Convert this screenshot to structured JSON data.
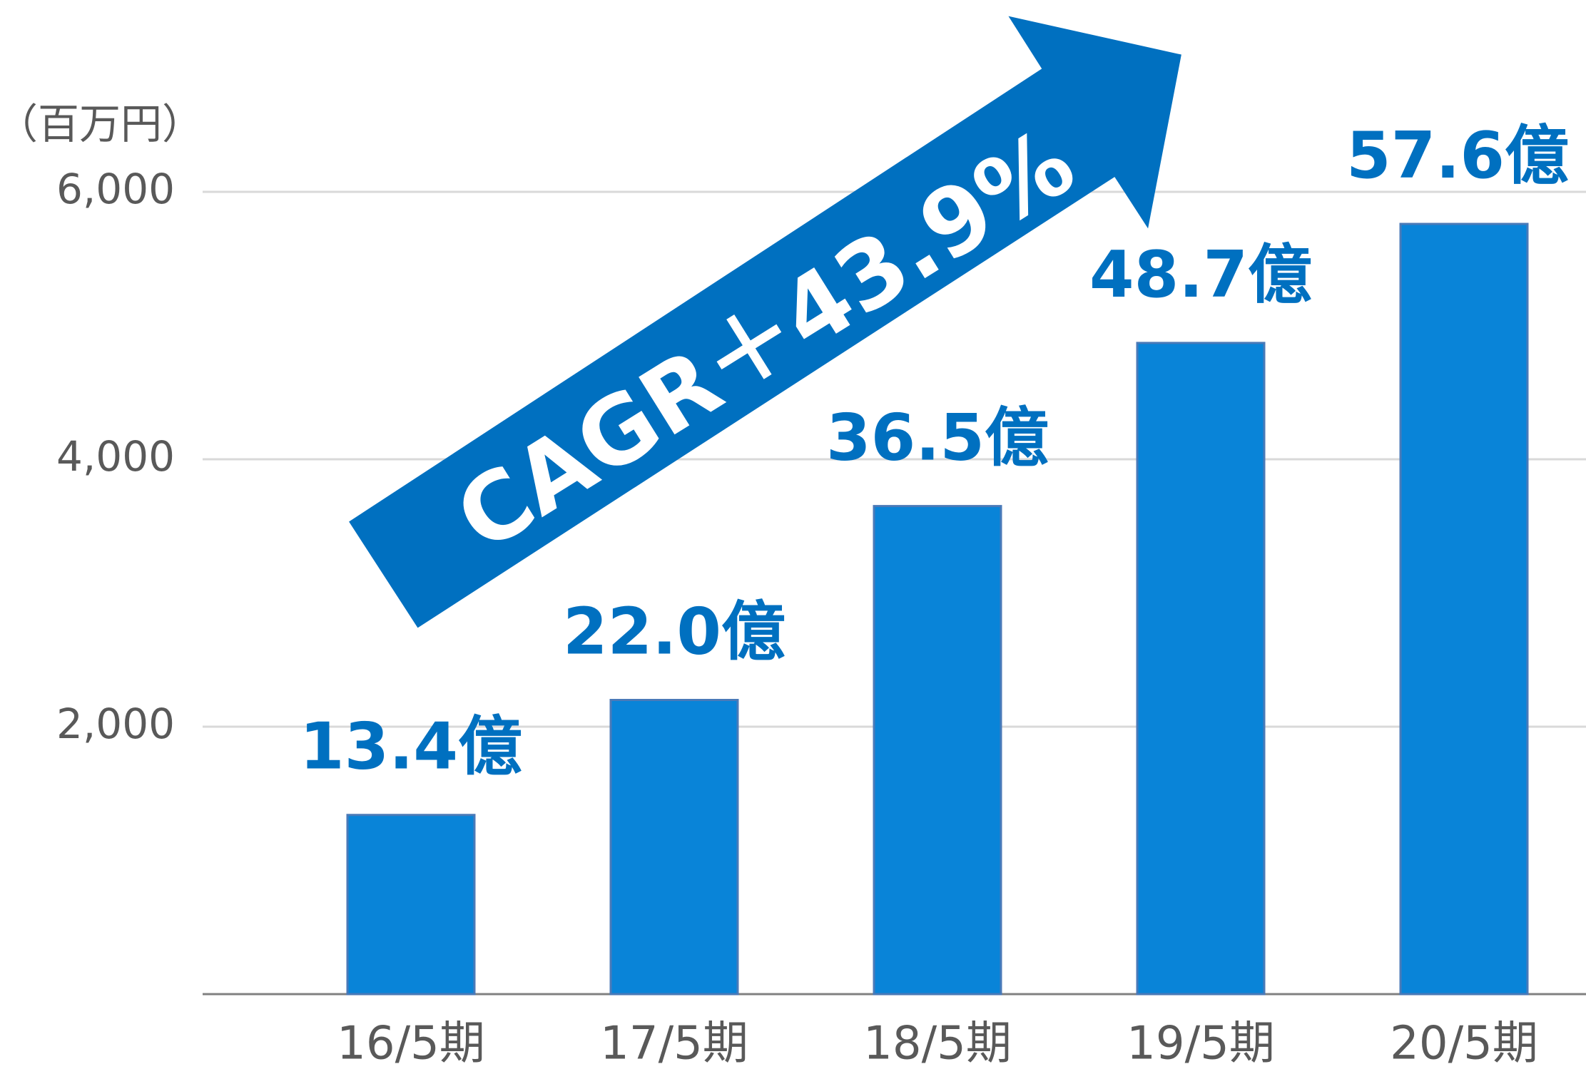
{
  "chart_data": {
    "type": "bar",
    "y_label": "（百万円）",
    "annotation": "CAGR＋43.9%",
    "categories": [
      "16/5期",
      "17/5期",
      "18/5期",
      "19/5期",
      "20/5期"
    ],
    "values": [
      1340,
      2200,
      3650,
      4870,
      5760
    ],
    "value_labels": [
      "13.4億",
      "22.0億",
      "36.5億",
      "48.7億",
      "57.6億"
    ],
    "color": "#0984d8",
    "ylim": [
      0,
      6000
    ],
    "yticks": [
      {
        "value": 2000,
        "label": "2,000"
      },
      {
        "value": 4000,
        "label": "4,000"
      },
      {
        "value": 6000,
        "label": "6,000"
      }
    ],
    "grid": true
  }
}
